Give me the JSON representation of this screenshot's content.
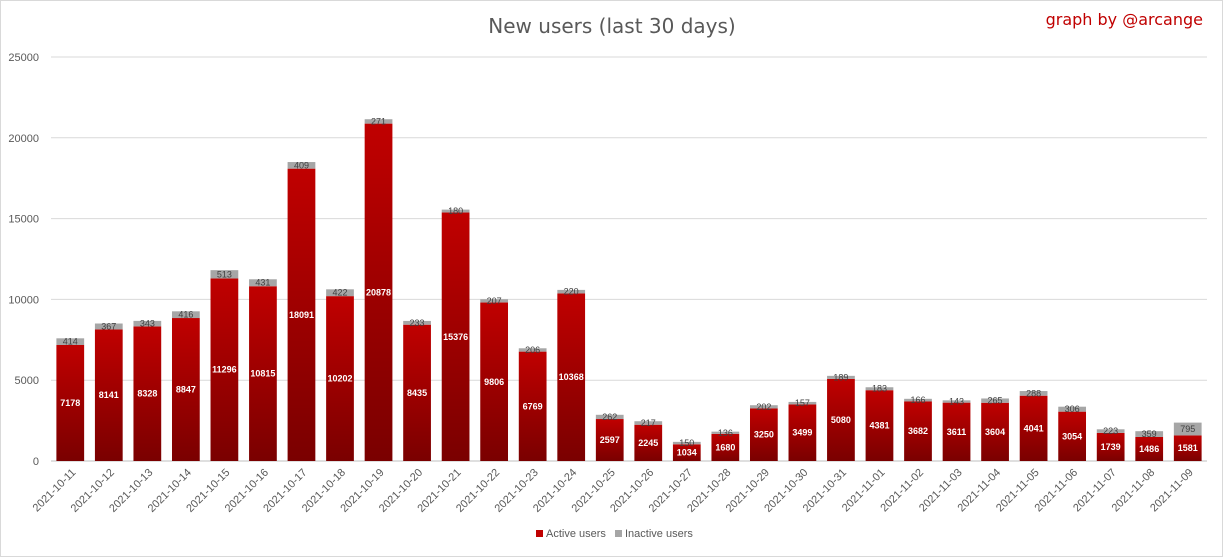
{
  "chart_data": {
    "type": "bar",
    "stacked": true,
    "title": "New users (last 30 days)",
    "credit": "graph by @arcange",
    "xlabel": "",
    "ylabel": "",
    "ylim": [
      0,
      25000
    ],
    "yticks": [
      "0",
      "5000",
      "10000",
      "15000",
      "20000",
      "25000"
    ],
    "grid": true,
    "legend_position": "bottom",
    "categories": [
      "2021-10-11",
      "2021-10-12",
      "2021-10-13",
      "2021-10-14",
      "2021-10-15",
      "2021-10-16",
      "2021-10-17",
      "2021-10-18",
      "2021-10-19",
      "2021-10-20",
      "2021-10-21",
      "2021-10-22",
      "2021-10-23",
      "2021-10-24",
      "2021-10-25",
      "2021-10-26",
      "2021-10-27",
      "2021-10-28",
      "2021-10-29",
      "2021-10-30",
      "2021-10-31",
      "2021-11-01",
      "2021-11-02",
      "2021-11-03",
      "2021-11-04",
      "2021-11-05",
      "2021-11-06",
      "2021-11-07",
      "2021-11-08",
      "2021-11-09"
    ],
    "series": [
      {
        "name": "Active users",
        "color": "#c00000",
        "values": [
          7178,
          8141,
          8328,
          8847,
          11296,
          10815,
          18091,
          10202,
          20878,
          8435,
          15376,
          9806,
          6769,
          10368,
          2597,
          2245,
          1034,
          1680,
          3250,
          3499,
          5080,
          4381,
          3682,
          3611,
          3604,
          4041,
          3054,
          1739,
          1486,
          1581
        ]
      },
      {
        "name": "Inactive users",
        "color": "#a6a6a6",
        "values": [
          414,
          367,
          343,
          416,
          513,
          431,
          409,
          422,
          271,
          233,
          180,
          207,
          206,
          220,
          262,
          217,
          150,
          136,
          202,
          157,
          189,
          183,
          166,
          143,
          265,
          288,
          306,
          223,
          359,
          795
        ]
      }
    ]
  }
}
